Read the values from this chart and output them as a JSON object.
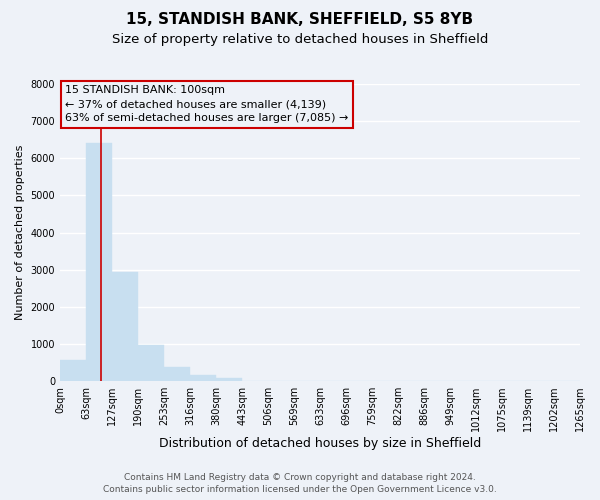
{
  "title": "15, STANDISH BANK, SHEFFIELD, S5 8YB",
  "subtitle": "Size of property relative to detached houses in Sheffield",
  "xlabel": "Distribution of detached houses by size in Sheffield",
  "ylabel": "Number of detached properties",
  "bar_edges": [
    0,
    63,
    127,
    190,
    253,
    316,
    380,
    443,
    506,
    569,
    633,
    696,
    759,
    822,
    886,
    949,
    1012,
    1075,
    1139,
    1202,
    1265
  ],
  "bar_heights": [
    560,
    6400,
    2930,
    970,
    380,
    175,
    80,
    0,
    0,
    0,
    0,
    0,
    0,
    0,
    0,
    0,
    0,
    0,
    0,
    0
  ],
  "bar_color": "#c8dff0",
  "bar_edgecolor": "#c8dff0",
  "property_line_x": 100,
  "property_line_color": "#cc0000",
  "ylim": [
    0,
    8000
  ],
  "yticks": [
    0,
    1000,
    2000,
    3000,
    4000,
    5000,
    6000,
    7000,
    8000
  ],
  "xlim": [
    0,
    1265
  ],
  "annotation_title": "15 STANDISH BANK: 100sqm",
  "annotation_line1": "← 37% of detached houses are smaller (4,139)",
  "annotation_line2": "63% of semi-detached houses are larger (7,085) →",
  "tick_labels": [
    "0sqm",
    "63sqm",
    "127sqm",
    "190sqm",
    "253sqm",
    "316sqm",
    "380sqm",
    "443sqm",
    "506sqm",
    "569sqm",
    "633sqm",
    "696sqm",
    "759sqm",
    "822sqm",
    "886sqm",
    "949sqm",
    "1012sqm",
    "1075sqm",
    "1139sqm",
    "1202sqm",
    "1265sqm"
  ],
  "footer1": "Contains HM Land Registry data © Crown copyright and database right 2024.",
  "footer2": "Contains public sector information licensed under the Open Government Licence v3.0.",
  "background_color": "#eef2f8",
  "grid_color": "#ffffff",
  "title_fontsize": 11,
  "subtitle_fontsize": 9.5,
  "xlabel_fontsize": 9,
  "ylabel_fontsize": 8,
  "tick_fontsize": 7,
  "annotation_fontsize": 8,
  "footer_fontsize": 6.5
}
